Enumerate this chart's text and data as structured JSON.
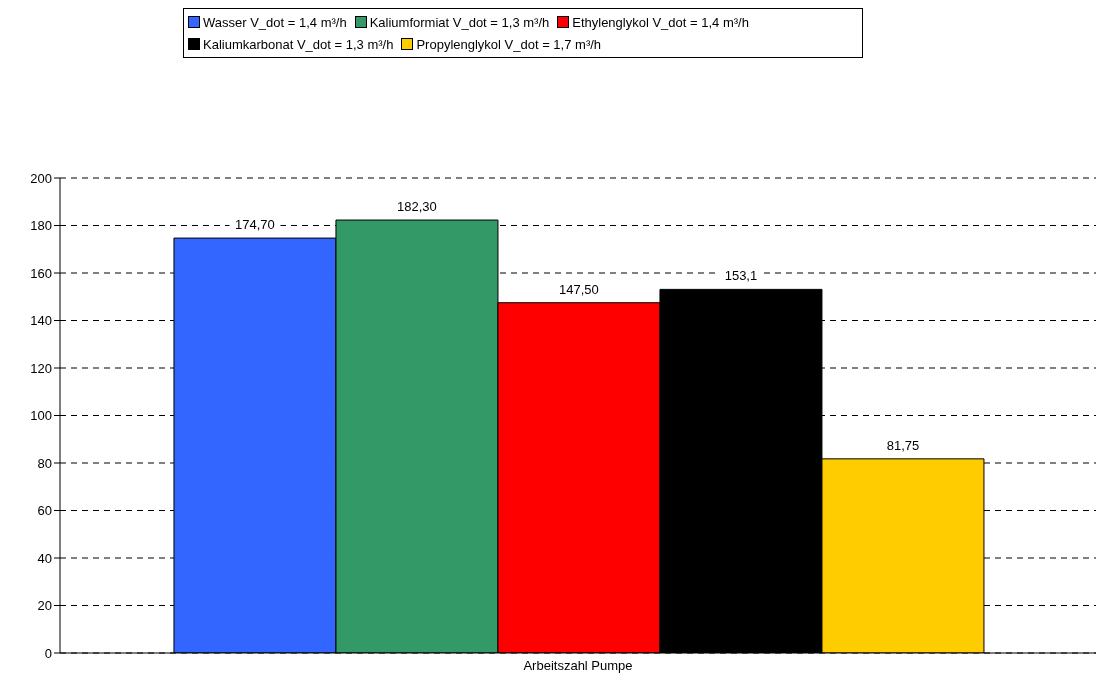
{
  "chart_data": {
    "type": "bar",
    "categories": [
      "Arbeitszahl Pumpe"
    ],
    "series": [
      {
        "name": "Wasser V_dot = 1,4 m³/h",
        "color": "#3366ff",
        "values": [
          174.7
        ],
        "value_labels": [
          "174,70"
        ]
      },
      {
        "name": "Kaliumformiat V_dot = 1,3 m³/h",
        "color": "#339966",
        "values": [
          182.3
        ],
        "value_labels": [
          "182,30"
        ]
      },
      {
        "name": "Ethylenglykol V_dot = 1,4 m³/h",
        "color": "#ff0000",
        "values": [
          147.5
        ],
        "value_labels": [
          "147,50"
        ]
      },
      {
        "name": "Kaliumkarbonat V_dot = 1,3 m³/h",
        "color": "#000000",
        "values": [
          153.1
        ],
        "value_labels": [
          "153,1"
        ]
      },
      {
        "name": "Propylenglykol V_dot = 1,7 m³/h",
        "color": "#ffcc00",
        "values": [
          81.75
        ],
        "value_labels": [
          "81,75"
        ]
      }
    ],
    "ylim": [
      0,
      200
    ],
    "yticks": [
      0,
      20,
      40,
      60,
      80,
      100,
      120,
      140,
      160,
      180,
      200
    ],
    "grid": "y",
    "legend": "top"
  }
}
